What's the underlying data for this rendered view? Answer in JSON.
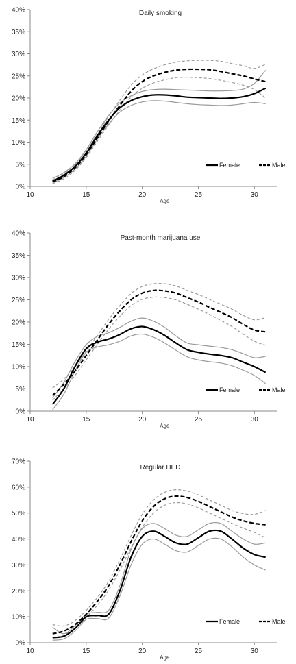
{
  "chart_data": [
    {
      "type": "line",
      "title": "Daily smoking",
      "xlabel": "Age",
      "ylabel": "",
      "xlim": [
        10,
        32
      ],
      "ylim": [
        0,
        40
      ],
      "x_ticks": [
        10,
        15,
        20,
        25,
        30
      ],
      "y_ticks": [
        0,
        5,
        10,
        15,
        20,
        25,
        30,
        35,
        40
      ],
      "y_tick_labels": [
        "0%",
        "5%",
        "10%",
        "15%",
        "20%",
        "25%",
        "30%",
        "35%",
        "40%"
      ],
      "grid": false,
      "legend_position": "bottom-right",
      "legend": [
        "Female",
        "Male"
      ],
      "x": [
        12,
        13,
        14,
        15,
        16,
        17,
        18,
        19,
        20,
        21,
        22,
        23,
        24,
        25,
        26,
        27,
        28,
        29,
        30,
        31
      ],
      "series": [
        {
          "name": "Female",
          "style": "solid",
          "color": "#000000",
          "values": [
            1.2,
            2.5,
            4.5,
            7.5,
            11.5,
            15.0,
            17.8,
            19.4,
            20.3,
            20.7,
            20.7,
            20.5,
            20.2,
            20.1,
            20.0,
            19.9,
            20.0,
            20.3,
            21.0,
            22.2
          ]
        },
        {
          "name": "Male",
          "style": "dashed",
          "color": "#000000",
          "values": [
            1.0,
            2.2,
            4.2,
            7.2,
            11.0,
            14.8,
            18.3,
            21.5,
            23.7,
            25.0,
            25.8,
            26.3,
            26.5,
            26.5,
            26.4,
            26.0,
            25.5,
            25.0,
            24.3,
            23.7
          ]
        }
      ],
      "bands": [
        {
          "series": "Female",
          "color": "#9a9a9a",
          "lower": [
            0.8,
            2.0,
            3.9,
            6.8,
            10.7,
            14.1,
            16.8,
            18.3,
            19.1,
            19.4,
            19.3,
            19.0,
            18.7,
            18.5,
            18.4,
            18.3,
            18.4,
            18.7,
            19.0,
            18.7
          ],
          "upper": [
            1.8,
            3.1,
            5.1,
            8.3,
            12.4,
            16.0,
            18.9,
            20.5,
            21.5,
            21.9,
            22.0,
            21.9,
            21.8,
            21.7,
            21.6,
            21.6,
            21.7,
            22.0,
            23.3,
            26.3
          ]
        },
        {
          "series": "Male",
          "color": "#9a9a9a",
          "lower": [
            0.6,
            1.7,
            3.6,
            6.5,
            10.2,
            13.9,
            17.2,
            20.2,
            22.2,
            23.4,
            24.1,
            24.6,
            24.7,
            24.6,
            24.4,
            24.0,
            23.5,
            22.9,
            21.9,
            20.0
          ],
          "upper": [
            1.5,
            2.8,
            4.9,
            8.0,
            11.9,
            15.8,
            19.5,
            22.9,
            25.2,
            26.6,
            27.5,
            28.1,
            28.4,
            28.5,
            28.5,
            28.3,
            27.8,
            27.3,
            26.7,
            27.6
          ]
        }
      ]
    },
    {
      "type": "line",
      "title": "Past-month marijuana use",
      "xlabel": "Age",
      "ylabel": "",
      "xlim": [
        10,
        32
      ],
      "ylim": [
        0,
        40
      ],
      "x_ticks": [
        10,
        15,
        20,
        25,
        30
      ],
      "y_ticks": [
        0,
        5,
        10,
        15,
        20,
        25,
        30,
        35,
        40
      ],
      "y_tick_labels": [
        "0%",
        "5%",
        "10%",
        "15%",
        "20%",
        "25%",
        "30%",
        "35%",
        "40%"
      ],
      "grid": false,
      "legend_position": "bottom-right",
      "legend": [
        "Female",
        "Male"
      ],
      "x": [
        12,
        13,
        14,
        15,
        16,
        17,
        18,
        19,
        20,
        21,
        22,
        23,
        24,
        25,
        26,
        27,
        28,
        29,
        30,
        31
      ],
      "series": [
        {
          "name": "Female",
          "style": "solid",
          "color": "#000000",
          "values": [
            1.5,
            5.0,
            10.0,
            14.0,
            15.5,
            16.2,
            17.2,
            18.5,
            19.0,
            18.3,
            17.0,
            15.3,
            13.8,
            13.2,
            12.8,
            12.5,
            12.0,
            11.0,
            10.0,
            8.7
          ]
        },
        {
          "name": "Male",
          "style": "dashed",
          "color": "#000000",
          "values": [
            3.5,
            6.0,
            9.0,
            12.5,
            16.0,
            19.5,
            22.5,
            25.0,
            26.5,
            27.1,
            27.0,
            26.5,
            25.5,
            24.5,
            23.3,
            22.2,
            21.0,
            19.5,
            18.2,
            17.8
          ]
        }
      ],
      "bands": [
        {
          "series": "Female",
          "color": "#9a9a9a",
          "lower": [
            0.3,
            3.8,
            9.0,
            13.2,
            14.4,
            14.9,
            15.7,
            16.9,
            17.3,
            16.6,
            15.3,
            13.7,
            12.2,
            11.5,
            11.1,
            10.8,
            10.2,
            9.2,
            8.0,
            6.2
          ],
          "upper": [
            3.0,
            6.4,
            11.1,
            14.9,
            16.8,
            17.6,
            18.8,
            20.2,
            20.9,
            20.2,
            18.8,
            16.9,
            15.3,
            14.9,
            14.6,
            14.3,
            13.8,
            12.9,
            12.0,
            12.3
          ]
        },
        {
          "series": "Male",
          "color": "#9a9a9a",
          "lower": [
            2.5,
            5.0,
            8.0,
            11.5,
            15.0,
            18.4,
            21.3,
            23.7,
            25.1,
            25.6,
            25.5,
            25.0,
            24.0,
            22.9,
            21.7,
            20.4,
            19.0,
            17.3,
            15.7,
            14.8
          ]
        },
        {
          "series": "Male",
          "color": "#9a9a9a",
          "upper": [
            5.2,
            7.2,
            10.0,
            13.5,
            17.0,
            20.6,
            23.7,
            26.4,
            28.0,
            28.6,
            28.6,
            28.1,
            27.1,
            26.2,
            25.1,
            24.0,
            22.9,
            21.5,
            20.5,
            21.0
          ]
        }
      ]
    },
    {
      "type": "line",
      "title": "Regular HED",
      "xlabel": "Age",
      "ylabel": "",
      "xlim": [
        10,
        32
      ],
      "ylim": [
        0,
        70
      ],
      "x_ticks": [
        10,
        15,
        20,
        25,
        30
      ],
      "y_ticks": [
        0,
        10,
        20,
        30,
        40,
        50,
        60,
        70
      ],
      "y_tick_labels": [
        "0%",
        "10%",
        "20%",
        "30%",
        "40%",
        "50%",
        "60%",
        "70%"
      ],
      "grid": false,
      "legend_position": "bottom-right",
      "legend": [
        "Female",
        "Male"
      ],
      "x": [
        12,
        13,
        14,
        15,
        16,
        17,
        18,
        19,
        20,
        21,
        22,
        23,
        24,
        25,
        26,
        27,
        28,
        29,
        30,
        31
      ],
      "series": [
        {
          "name": "Female",
          "style": "solid",
          "color": "#000000",
          "values": [
            2.0,
            2.5,
            5.5,
            10.0,
            10.5,
            11.0,
            20.0,
            33.0,
            41.0,
            43.0,
            41.0,
            38.5,
            38.0,
            40.5,
            43.0,
            43.0,
            40.0,
            36.5,
            34.0,
            33.0
          ]
        },
        {
          "name": "Male",
          "style": "dashed",
          "color": "#000000",
          "values": [
            3.5,
            4.5,
            7.0,
            11.0,
            16.0,
            22.0,
            30.0,
            39.0,
            47.0,
            52.5,
            55.5,
            56.5,
            56.0,
            54.5,
            52.5,
            50.5,
            48.5,
            47.0,
            46.0,
            45.5
          ]
        }
      ],
      "bands": [
        {
          "series": "Female",
          "color": "#9a9a9a",
          "lower": [
            1.0,
            1.5,
            4.5,
            9.0,
            9.3,
            9.5,
            18.0,
            30.0,
            38.0,
            40.0,
            38.0,
            35.5,
            35.0,
            37.5,
            40.0,
            40.0,
            37.0,
            33.0,
            30.0,
            28.0
          ],
          "upper": [
            6.0,
            3.5,
            6.5,
            11.0,
            11.7,
            12.5,
            22.0,
            36.0,
            44.0,
            46.0,
            44.0,
            41.5,
            41.0,
            43.5,
            46.0,
            46.0,
            43.0,
            40.0,
            38.0,
            38.5
          ]
        },
        {
          "series": "Male",
          "color": "#9a9a9a",
          "lower": [
            2.0,
            3.0,
            5.7,
            9.7,
            14.5,
            20.3,
            28.0,
            36.7,
            44.5,
            50.0,
            53.0,
            54.0,
            53.5,
            52.0,
            50.0,
            48.0,
            46.0,
            44.2,
            42.5,
            40.5
          ],
          "upper": [
            7.0,
            6.5,
            8.5,
            12.5,
            17.5,
            23.7,
            32.0,
            41.3,
            49.5,
            55.0,
            58.0,
            59.0,
            58.5,
            57.0,
            55.0,
            53.0,
            51.0,
            49.8,
            49.5,
            51.0
          ]
        }
      ]
    }
  ]
}
